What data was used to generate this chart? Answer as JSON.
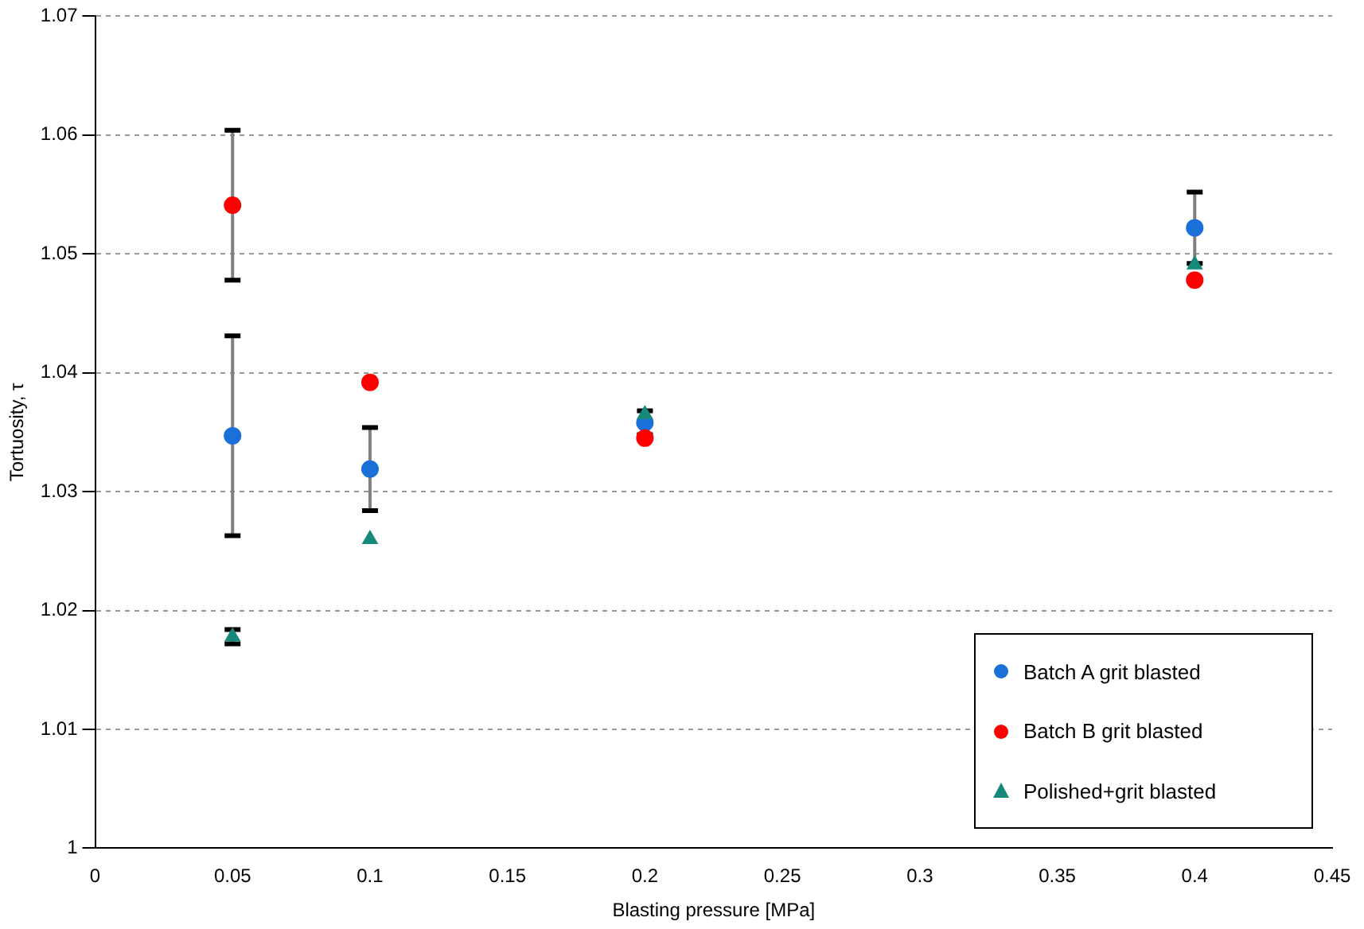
{
  "chart_data": {
    "type": "scatter",
    "xlabel": "Blasting pressure [MPa]",
    "ylabel": "Tortuosity, τ",
    "xlim": [
      0,
      0.45
    ],
    "xticks": [
      0,
      0.05,
      0.1,
      0.15,
      0.2,
      0.25,
      0.3,
      0.35,
      0.4,
      0.45
    ],
    "ylim": [
      1,
      1.07
    ],
    "yticks": [
      {
        "value": 1,
        "label": "1"
      },
      1.01,
      1.02,
      1.03,
      1.04,
      1.05,
      1.06,
      1.07
    ],
    "grid": "y",
    "legend": "bottom right",
    "x": [
      0.05,
      0.1,
      0.2,
      0.4
    ],
    "series": [
      {
        "name": "Batch A grit blasted",
        "color": "#1a6fd8",
        "marker": "circle",
        "values": [
          1.0347,
          1.0319,
          1.0358,
          1.0522
        ],
        "errors": [
          0.0084,
          0.0035,
          0.001,
          0.003
        ]
      },
      {
        "name": "Batch B grit blasted",
        "color": "#ff0000",
        "marker": "circle",
        "values": [
          1.0541,
          1.0392,
          1.0345,
          1.0478
        ],
        "errors": [
          0.0063,
          null,
          null,
          null
        ]
      },
      {
        "name": "Polished+grit blasted",
        "color": "#16897a",
        "marker": "triangle",
        "values": [
          1.0178,
          1.026,
          1.0365,
          1.0491
        ],
        "errors": [
          0.0006,
          null,
          null,
          null
        ]
      }
    ]
  }
}
